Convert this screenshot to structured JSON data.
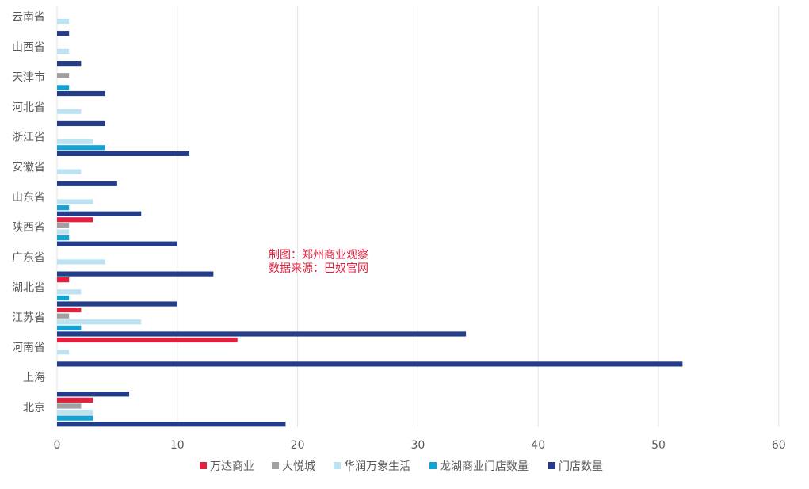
{
  "chart_data": {
    "type": "bar",
    "orientation": "horizontal",
    "categories": [
      "云南省",
      "山西省",
      "天津市",
      "河北省",
      "浙江省",
      "安徽省",
      "山东省",
      "陕西省",
      "广东省",
      "湖北省",
      "江苏省",
      "河南省",
      "上海",
      "北京"
    ],
    "series": [
      {
        "name": "万达商业",
        "color": "#e0203f",
        "values": [
          0,
          0,
          0,
          0,
          0,
          0,
          0,
          3,
          0,
          1,
          2,
          15,
          0,
          3
        ]
      },
      {
        "name": "大悦城",
        "color": "#a0a0a0",
        "values": [
          0,
          0,
          1,
          0,
          0,
          0,
          0,
          1,
          0,
          0,
          1,
          0,
          0,
          2
        ]
      },
      {
        "name": "华润万象生活",
        "color": "#bde3f2",
        "values": [
          1,
          1,
          0,
          2,
          3,
          2,
          3,
          1,
          4,
          2,
          7,
          1,
          0,
          3
        ]
      },
      {
        "name": "龙湖商业门店数量",
        "color": "#12a2d6",
        "values": [
          0,
          0,
          1,
          0,
          4,
          0,
          1,
          1,
          0,
          1,
          2,
          0,
          0,
          3
        ]
      },
      {
        "name": "门店数量",
        "color": "#233d8a",
        "values": [
          1,
          2,
          4,
          4,
          11,
          5,
          7,
          10,
          13,
          10,
          34,
          52,
          6,
          19
        ]
      }
    ],
    "xlim": [
      0,
      60
    ],
    "xticks": [
      "0",
      "10",
      "20",
      "30",
      "40",
      "50",
      "60"
    ],
    "grid": true,
    "legend_position": "bottom",
    "annotations": [
      "制图：郑州商业观察",
      "数据来源：巴奴官网"
    ]
  }
}
